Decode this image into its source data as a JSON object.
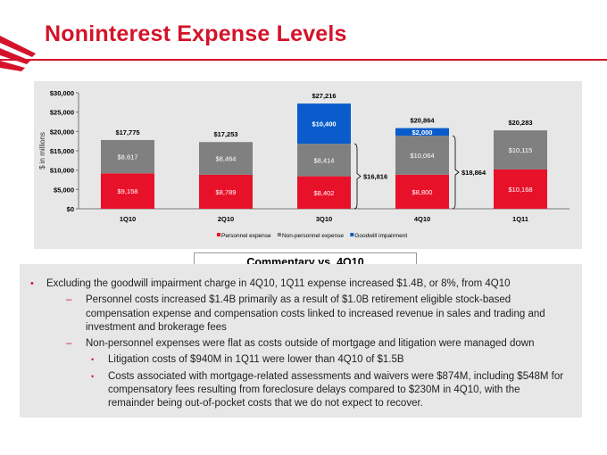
{
  "page": {
    "title": "Noninterest Expense Levels",
    "commentary_title": "Commentary vs. 4Q10"
  },
  "colors": {
    "brand_red": "#d4132a",
    "personnel": "#e8112a",
    "non_personnel": "#808080",
    "goodwill": "#0a5ccc",
    "panel": "#e7e7e7"
  },
  "chart_data": {
    "type": "bar",
    "stacked": true,
    "categories": [
      "1Q10",
      "2Q10",
      "3Q10",
      "4Q10",
      "1Q11"
    ],
    "series": [
      {
        "name": "Personnel expense",
        "values": [
          9158,
          8789,
          8402,
          8800,
          10168
        ],
        "labels": [
          "$9,158",
          "$8,789",
          "$8,402",
          "$8,800",
          "$10,168"
        ]
      },
      {
        "name": "Non-personnel expense",
        "values": [
          8617,
          8464,
          8414,
          10064,
          10115
        ],
        "labels": [
          "$8,617",
          "$8,464",
          "$8,414",
          "$10,064",
          "$10,115"
        ]
      },
      {
        "name": "Goodwill impairment",
        "values": [
          0,
          0,
          10400,
          2000,
          0
        ],
        "labels": [
          "",
          "",
          "$10,400",
          "$2,000",
          ""
        ]
      }
    ],
    "totals": [
      17775,
      17253,
      27216,
      20864,
      20283
    ],
    "total_labels": [
      "$17,775",
      "$17,253",
      "$27,216",
      "$20,864",
      "$20,283"
    ],
    "annotations": [
      {
        "category": "3Q10",
        "label": "$16,816",
        "value": 16816
      },
      {
        "category": "4Q10",
        "label": "$18,864",
        "value": 18864
      }
    ],
    "ylabel": "$ in millions",
    "ylim": [
      0,
      30000
    ],
    "yticks": [
      0,
      5000,
      10000,
      15000,
      20000,
      25000,
      30000
    ],
    "ytick_labels": [
      "$0",
      "$5,000",
      "$10,000",
      "$15,000",
      "$20,000",
      "$25,000",
      "$30,000"
    ],
    "legend_position": "bottom"
  },
  "commentary": {
    "bullet1": "Excluding the goodwill impairment charge in 4Q10, 1Q11 expense increased $1.4B, or 8%, from 4Q10",
    "sub1": "Personnel costs increased $1.4B primarily as a result of $1.0B retirement eligible stock-based compensation expense and compensation costs linked to increased revenue in sales and trading and investment and brokerage fees",
    "sub2": "Non-personnel expenses were flat as costs outside of mortgage and litigation were managed down",
    "sub2_a": "Litigation costs of $940M in 1Q11 were lower than 4Q10 of $1.5B",
    "sub2_b": "Costs associated with mortgage-related assessments and waivers were $874M, including $548M for compensatory fees resulting from foreclosure delays compared to $230M in 4Q10, with the remainder being out-of-pocket costs that we do not expect to recover.",
    "bullet_mark": "•",
    "dash_mark": "–",
    "sub_mark": "•"
  }
}
